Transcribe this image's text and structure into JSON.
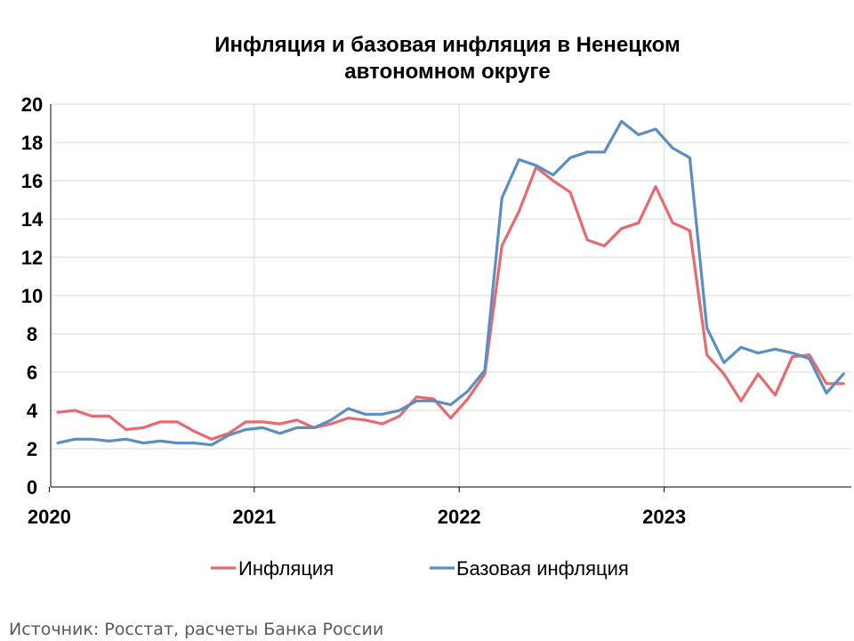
{
  "chart_data": {
    "type": "line",
    "title": [
      "Инфляция и базовая инфляция в Ненецком",
      "автономном округе"
    ],
    "ylim": [
      0,
      20
    ],
    "yticks": [
      0,
      2,
      4,
      6,
      8,
      10,
      12,
      14,
      16,
      18,
      20
    ],
    "xticks": [
      "2020",
      "2021",
      "2022",
      "2023"
    ],
    "grid": "vertical and horizontal",
    "legend_position": "bottom",
    "x": [
      "2020-01",
      "2020-02",
      "2020-03",
      "2020-04",
      "2020-05",
      "2020-06",
      "2020-07",
      "2020-08",
      "2020-09",
      "2020-10",
      "2020-11",
      "2020-12",
      "2021-01",
      "2021-02",
      "2021-03",
      "2021-04",
      "2021-05",
      "2021-06",
      "2021-07",
      "2021-08",
      "2021-09",
      "2021-10",
      "2021-11",
      "2021-12",
      "2022-01",
      "2022-02",
      "2022-03",
      "2022-04",
      "2022-05",
      "2022-06",
      "2022-07",
      "2022-08",
      "2022-09",
      "2022-10",
      "2022-11",
      "2022-12",
      "2023-01",
      "2023-02",
      "2023-03",
      "2023-04",
      "2023-05",
      "2023-06",
      "2023-07",
      "2023-08",
      "2023-09",
      "2023-10",
      "2023-11",
      "2023-12"
    ],
    "series": [
      {
        "name": "Инфляция",
        "color": "#e8696e",
        "values": [
          3.9,
          4.0,
          3.7,
          3.7,
          3.0,
          3.1,
          3.4,
          3.4,
          2.9,
          2.5,
          2.8,
          3.4,
          3.4,
          3.3,
          3.5,
          3.1,
          3.3,
          3.6,
          3.5,
          3.3,
          3.7,
          4.7,
          4.6,
          3.6,
          4.6,
          5.9,
          12.6,
          14.4,
          16.7,
          16.0,
          15.4,
          12.9,
          12.6,
          13.5,
          13.8,
          15.7,
          13.8,
          13.4,
          6.9,
          5.9,
          4.5,
          5.9,
          4.8,
          6.8,
          6.9,
          5.4,
          5.4,
          null
        ]
      },
      {
        "name": "Базовая инфляция",
        "color": "#5b8fc2",
        "values": [
          2.3,
          2.5,
          2.5,
          2.4,
          2.5,
          2.3,
          2.4,
          2.3,
          2.3,
          2.2,
          2.7,
          3.0,
          3.1,
          2.8,
          3.1,
          3.1,
          3.5,
          4.1,
          3.8,
          3.8,
          4.0,
          4.5,
          4.5,
          4.3,
          5.0,
          6.1,
          15.1,
          17.1,
          16.8,
          16.3,
          17.2,
          17.5,
          17.5,
          19.1,
          18.4,
          18.7,
          17.7,
          17.2,
          8.3,
          6.5,
          7.3,
          7.0,
          7.2,
          7.0,
          6.7,
          4.9,
          5.9,
          null
        ]
      }
    ]
  },
  "source": "Источник: Росстат, расчеты Банка России"
}
